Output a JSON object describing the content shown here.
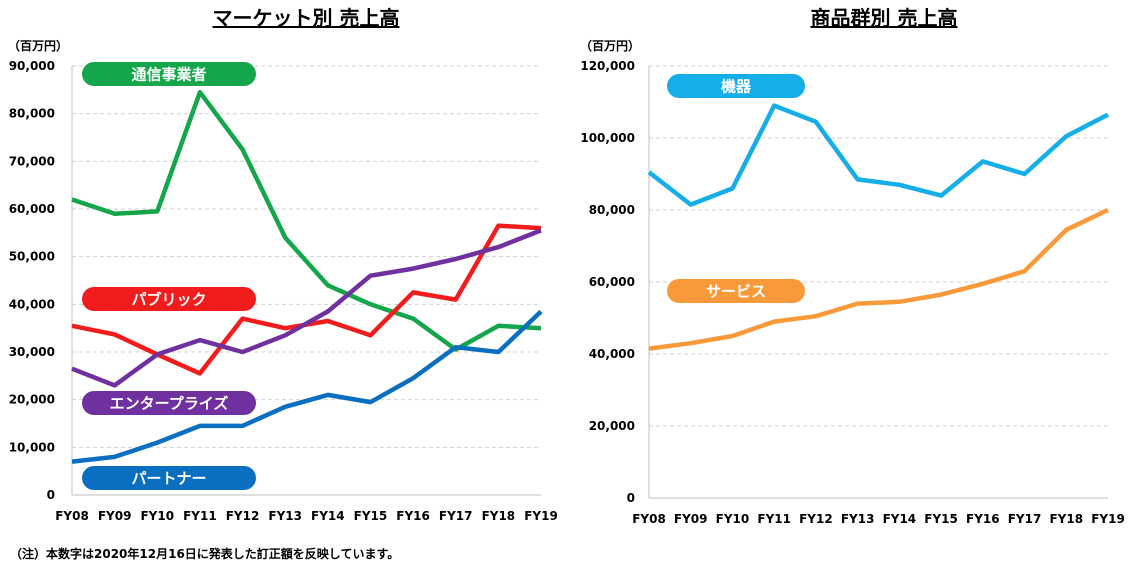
{
  "note": "（注）本数字は2020年12月16日に発表した訂正額を反映しています。",
  "chart_data": [
    {
      "type": "line",
      "title": "マーケット別 売上高",
      "unit_label": "（百万円）",
      "xlabel": "",
      "ylabel": "",
      "ylim": [
        0,
        90000
      ],
      "yticks": [
        0,
        10000,
        20000,
        30000,
        40000,
        50000,
        60000,
        70000,
        80000,
        90000
      ],
      "yticklabels": [
        "0",
        "10,000",
        "20,000",
        "30,000",
        "40,000",
        "50,000",
        "60,000",
        "70,000",
        "80,000",
        "90,000"
      ],
      "grid": true,
      "categories": [
        "FY08",
        "FY09",
        "FY10",
        "FY11",
        "FY12",
        "FY13",
        "FY14",
        "FY15",
        "FY16",
        "FY17",
        "FY18",
        "FY19"
      ],
      "series": [
        {
          "name": "通信事業者",
          "color": "#13a64a",
          "values": [
            62000,
            59000,
            59500,
            84500,
            72500,
            54000,
            44000,
            40000,
            37000,
            30500,
            35500,
            35000
          ]
        },
        {
          "name": "パブリック",
          "color": "#f21c1c",
          "values": [
            35500,
            33700,
            29500,
            25500,
            37000,
            35000,
            36500,
            33500,
            42500,
            41000,
            56500,
            56000
          ]
        },
        {
          "name": "エンタープライズ",
          "color": "#7030a0",
          "values": [
            26500,
            23000,
            29500,
            32500,
            30000,
            33500,
            38500,
            46000,
            47500,
            49500,
            52000,
            55500
          ]
        },
        {
          "name": "パートナー",
          "color": "#0a6fc0",
          "values": [
            7000,
            8000,
            11000,
            14500,
            14500,
            18500,
            21000,
            19500,
            24500,
            31000,
            30000,
            38500
          ]
        }
      ]
    },
    {
      "type": "line",
      "title": "商品群別 売上高",
      "unit_label": "（百万円）",
      "xlabel": "",
      "ylabel": "",
      "ylim": [
        0,
        120000
      ],
      "yticks": [
        0,
        20000,
        40000,
        60000,
        80000,
        100000,
        120000
      ],
      "yticklabels": [
        "0",
        "20,000",
        "40,000",
        "60,000",
        "80,000",
        "100,000",
        "120,000"
      ],
      "grid": true,
      "categories": [
        "FY08",
        "FY09",
        "FY10",
        "FY11",
        "FY12",
        "FY13",
        "FY14",
        "FY15",
        "FY16",
        "FY17",
        "FY18",
        "FY19"
      ],
      "series": [
        {
          "name": "機器",
          "color": "#16aee8",
          "values": [
            90500,
            81500,
            86000,
            109000,
            104500,
            88500,
            87000,
            84000,
            93500,
            90000,
            100500,
            106500
          ]
        },
        {
          "name": "サービス",
          "color": "#f89a3a",
          "values": [
            41500,
            43000,
            45000,
            49000,
            50500,
            54000,
            54500,
            56500,
            59500,
            63000,
            74500,
            80000
          ]
        }
      ]
    }
  ]
}
